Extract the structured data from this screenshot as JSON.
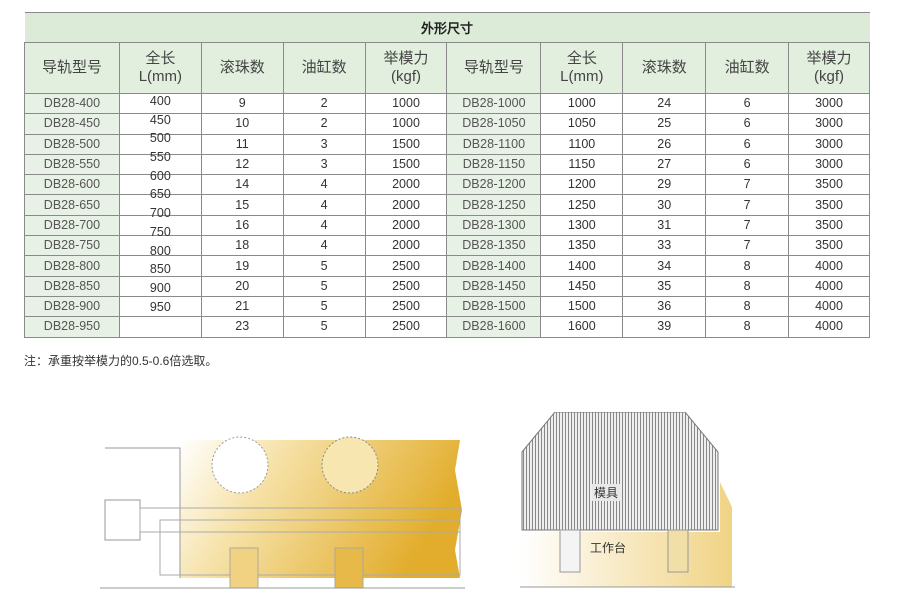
{
  "table": {
    "title": "外形尺寸",
    "headers": [
      [
        "导轨型号",
        ""
      ],
      [
        "全长",
        "L(mm)"
      ],
      [
        "滚珠数",
        ""
      ],
      [
        "油缸数",
        ""
      ],
      [
        "举模力",
        "(kgf)"
      ],
      [
        "导轨型号",
        ""
      ],
      [
        "全长",
        "L(mm)"
      ],
      [
        "滚珠数",
        ""
      ],
      [
        "油缸数",
        ""
      ],
      [
        "举模力",
        "(kgf)"
      ]
    ],
    "rows": [
      [
        "DB28-400",
        "400",
        "9",
        "2",
        "1000",
        "DB28-1000",
        "1000",
        "24",
        "6",
        "3000"
      ],
      [
        "DB28-450",
        "450",
        "10",
        "2",
        "1000",
        "DB28-1050",
        "1050",
        "25",
        "6",
        "3000"
      ],
      [
        "DB28-500",
        "500",
        "11",
        "3",
        "1500",
        "DB28-1100",
        "1100",
        "26",
        "6",
        "3000"
      ],
      [
        "DB28-550",
        "550",
        "12",
        "3",
        "1500",
        "DB28-1150",
        "1150",
        "27",
        "6",
        "3000"
      ],
      [
        "DB28-600",
        "600",
        "14",
        "4",
        "2000",
        "DB28-1200",
        "1200",
        "29",
        "7",
        "3500"
      ],
      [
        "DB28-650",
        "650",
        "15",
        "4",
        "2000",
        "DB28-1250",
        "1250",
        "30",
        "7",
        "3500"
      ],
      [
        "DB28-700",
        "700",
        "16",
        "4",
        "2000",
        "DB28-1300",
        "1300",
        "31",
        "7",
        "3500"
      ],
      [
        "DB28-750",
        "750",
        "18",
        "4",
        "2000",
        "DB28-1350",
        "1350",
        "33",
        "7",
        "3500"
      ],
      [
        "DB28-800",
        "800",
        "19",
        "5",
        "2500",
        "DB28-1400",
        "1400",
        "34",
        "8",
        "4000"
      ],
      [
        "DB28-850",
        "850",
        "20",
        "5",
        "2500",
        "DB28-1450",
        "1450",
        "35",
        "8",
        "4000"
      ],
      [
        "DB28-900",
        "900",
        "21",
        "5",
        "2500",
        "DB28-1500",
        "1500",
        "36",
        "8",
        "4000"
      ],
      [
        "DB28-950",
        "950",
        "23",
        "5",
        "2500",
        "DB28-1600",
        "1600",
        "39",
        "8",
        "4000"
      ]
    ]
  },
  "note": "注：承重按举模力的0.5-0.6倍选取。",
  "diagram": {
    "mold_label": "模具",
    "table_label": "工作台"
  },
  "colors": {
    "header_green": "#dcebd8",
    "model_cell": "#e8f1e5",
    "illustration_gold": "#e8b83a"
  }
}
